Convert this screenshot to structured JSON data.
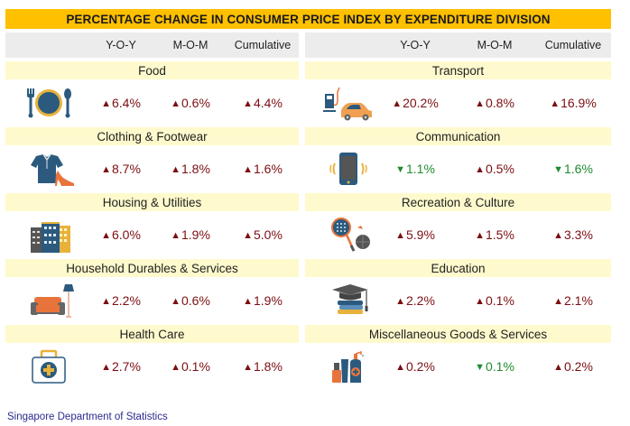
{
  "title": "PERCENTAGE CHANGE IN CONSUMER PRICE INDEX BY EXPENDITURE DIVISION",
  "columns": [
    "Y-O-Y",
    "M-O-M",
    "Cumulative"
  ],
  "colors": {
    "banner": "#FFC000",
    "increase": "#7B0E12",
    "decrease": "#1E8B2E",
    "category_bg": "#FFFACD",
    "header_bg": "#ECECEC"
  },
  "left": [
    {
      "name": "Food",
      "icon": "plate-cutlery-icon",
      "yoy": "6.4%",
      "yoy_dir": "up",
      "mom": "0.6%",
      "mom_dir": "up",
      "cum": "4.4%",
      "cum_dir": "up"
    },
    {
      "name": "Clothing & Footwear",
      "icon": "shirt-heel-icon",
      "yoy": "8.7%",
      "yoy_dir": "up",
      "mom": "1.8%",
      "mom_dir": "up",
      "cum": "1.6%",
      "cum_dir": "up"
    },
    {
      "name": "Housing & Utilities",
      "icon": "buildings-icon",
      "yoy": "6.0%",
      "yoy_dir": "up",
      "mom": "1.9%",
      "mom_dir": "up",
      "cum": "5.0%",
      "cum_dir": "up"
    },
    {
      "name": "Household Durables & Services",
      "icon": "sofa-lamp-icon",
      "yoy": "2.2%",
      "yoy_dir": "up",
      "mom": "0.6%",
      "mom_dir": "up",
      "cum": "1.9%",
      "cum_dir": "up"
    },
    {
      "name": "Health Care",
      "icon": "medical-kit-icon",
      "yoy": "2.7%",
      "yoy_dir": "up",
      "mom": "0.1%",
      "mom_dir": "up",
      "cum": "1.8%",
      "cum_dir": "up"
    }
  ],
  "right": [
    {
      "name": "Transport",
      "icon": "fuel-car-icon",
      "yoy": "20.2%",
      "yoy_dir": "up",
      "mom": "0.8%",
      "mom_dir": "up",
      "cum": "16.9%",
      "cum_dir": "up"
    },
    {
      "name": "Communication",
      "icon": "smartphone-icon",
      "yoy": "1.1%",
      "yoy_dir": "down",
      "mom": "0.5%",
      "mom_dir": "up",
      "cum": "1.6%",
      "cum_dir": "down"
    },
    {
      "name": "Recreation & Culture",
      "icon": "racket-ball-icon",
      "yoy": "5.9%",
      "yoy_dir": "up",
      "mom": "1.5%",
      "mom_dir": "up",
      "cum": "3.3%",
      "cum_dir": "up"
    },
    {
      "name": "Education",
      "icon": "graduation-books-icon",
      "yoy": "2.2%",
      "yoy_dir": "up",
      "mom": "0.1%",
      "mom_dir": "up",
      "cum": "2.1%",
      "cum_dir": "up"
    },
    {
      "name": "Miscellaneous Goods & Services",
      "icon": "toiletries-icon",
      "yoy": "0.2%",
      "yoy_dir": "up",
      "mom": "0.1%",
      "mom_dir": "down",
      "cum": "0.2%",
      "cum_dir": "up"
    }
  ],
  "footer": "Singapore Department of Statistics"
}
